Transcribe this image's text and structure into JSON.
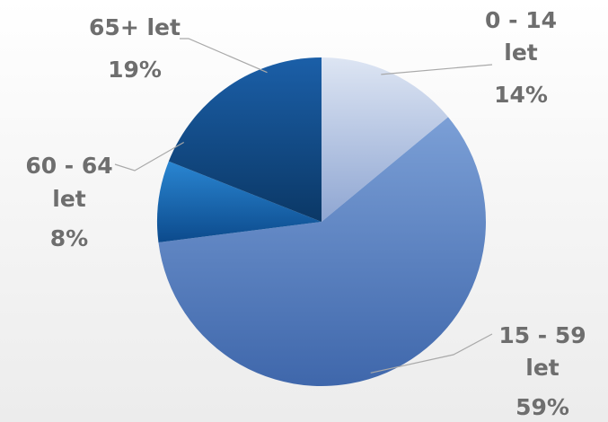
{
  "chart_data": {
    "type": "pie",
    "title": "",
    "legend": "none",
    "slices": [
      {
        "name_line1": "0 - 14",
        "name_line2": "let",
        "value": 14,
        "pct_label": "14%",
        "color_light": "#dde5f3",
        "color_dark": "#8fa6d2"
      },
      {
        "name_line1": "15 - 59",
        "name_line2": "let",
        "value": 59,
        "pct_label": "59%",
        "color_light": "#7b9fd6",
        "color_dark": "#3f67ab"
      },
      {
        "name_line1": "60 - 64",
        "name_line2": "let",
        "value": 8,
        "pct_label": "8%",
        "color_light": "#2a86d2",
        "color_dark": "#0c4a8c"
      },
      {
        "name_line1": "65+ let",
        "name_line2": "",
        "value": 19,
        "pct_label": "19%",
        "color_light": "#1b5fa8",
        "color_dark": "#0b3866"
      }
    ]
  }
}
